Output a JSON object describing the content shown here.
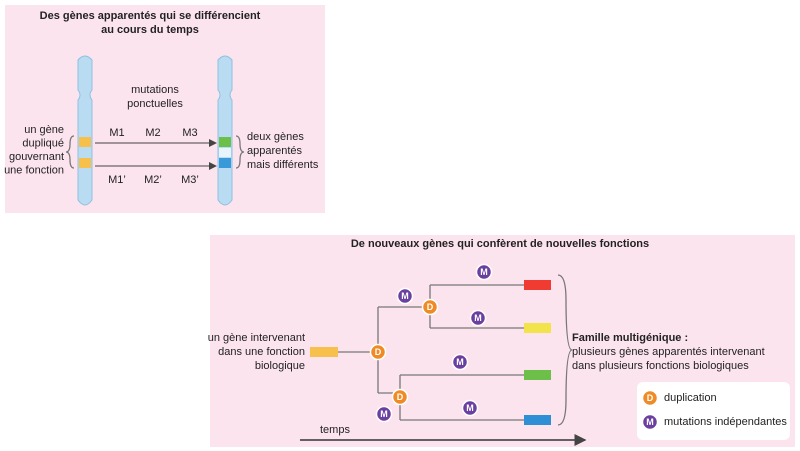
{
  "panel1": {
    "title": [
      "Des gènes apparentés qui se différencient",
      "au cours du temps"
    ],
    "mutations_label": [
      "mutations",
      "ponctuelles"
    ],
    "mutations_top": [
      "M1",
      "M2",
      "M3"
    ],
    "mutations_bottom": [
      "M1’",
      "M2’",
      "M3’"
    ],
    "left_label": [
      "un gène",
      "dupliqué",
      "gouvernant",
      "une fonction"
    ],
    "right_label": [
      "deux gènes",
      "apparentés",
      "mais différents"
    ]
  },
  "panel2": {
    "title": "De nouveaux gènes qui confèrent de nouvelles fonctions",
    "left_label": [
      "un gène intervenant",
      "dans une fonction",
      "biologique"
    ],
    "family_title": "Famille multigénique :",
    "family_text": [
      "plusieurs gènes apparentés intervenant",
      "dans plusieurs fonctions biologiques"
    ],
    "symbols": {
      "duplication": "D",
      "mutation": "M"
    },
    "legend": {
      "duplication": "duplication",
      "mutation": "mutations indépendantes"
    },
    "time_label": "temps"
  }
}
